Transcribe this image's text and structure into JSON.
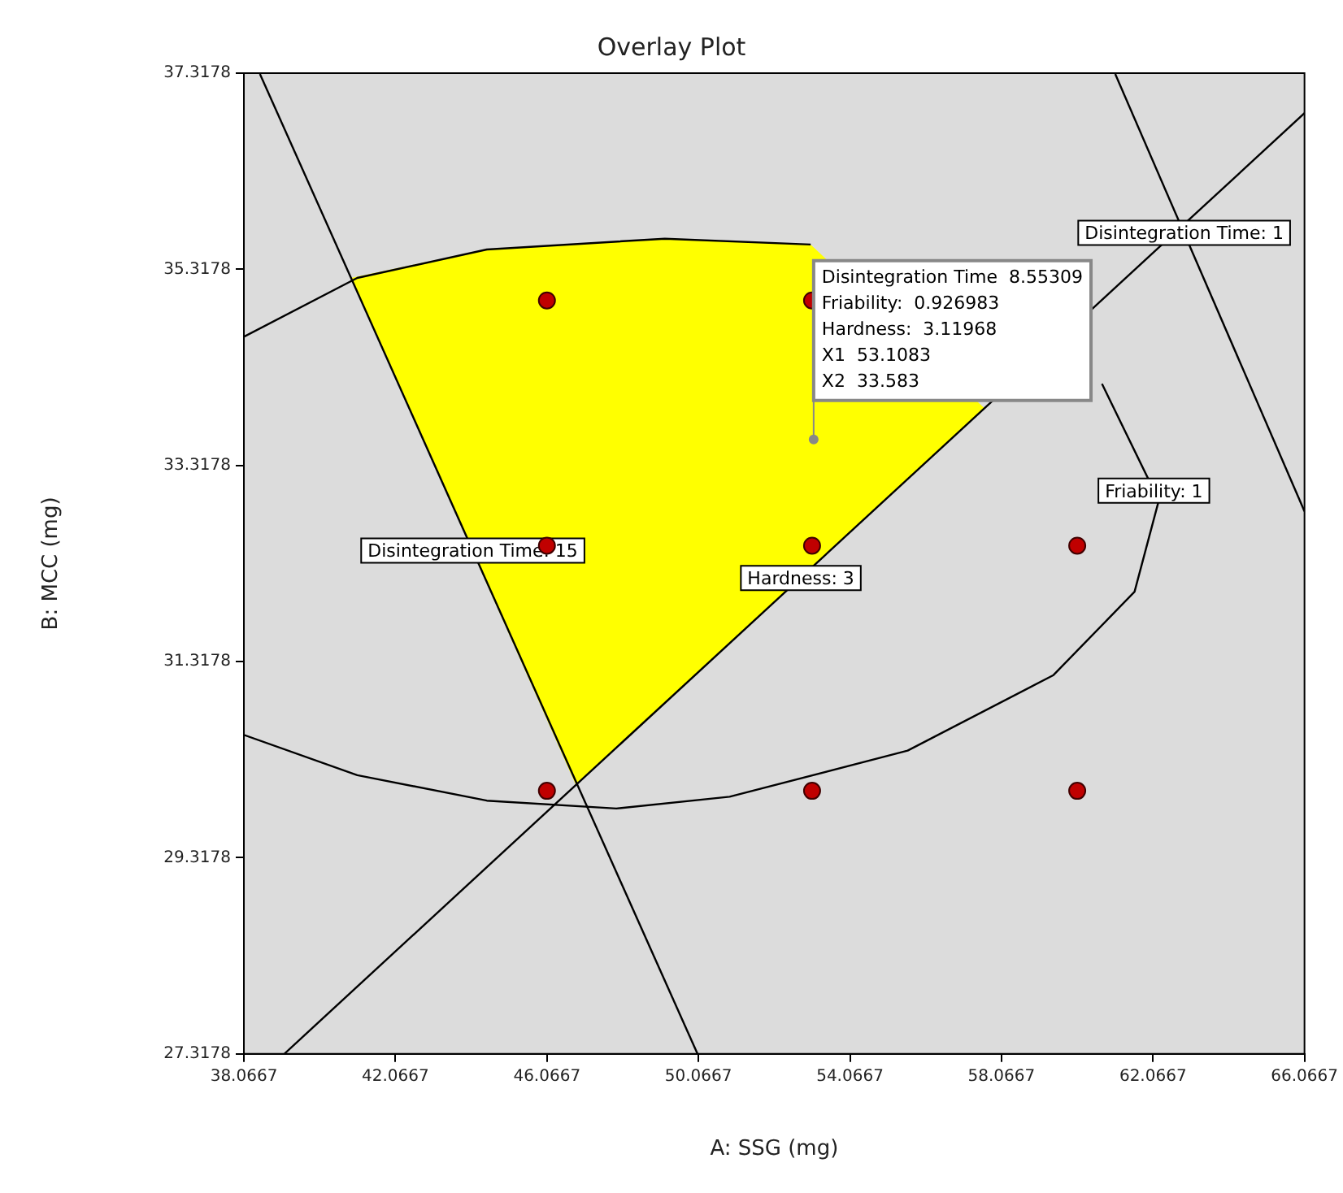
{
  "chart_data": {
    "type": "scatter",
    "title": "Overlay Plot",
    "xlabel": "A: SSG (mg)",
    "ylabel": "B: MCC (mg)",
    "xlim": [
      38.0667,
      66.0667
    ],
    "xticks": [
      38.0667,
      42.0667,
      46.0667,
      50.0667,
      54.0667,
      58.0667,
      62.0667,
      66.0667
    ],
    "ylim": [
      27.3178,
      37.3178
    ],
    "yticks": [
      27.3178,
      29.3178,
      31.3178,
      33.3178,
      35.3178,
      37.3178
    ],
    "grid": false,
    "legend": false,
    "series": [
      {
        "type": "area",
        "color": "#ffff00",
        "x": [
          40.9,
          44.48,
          49.18,
          53.03,
          57.62,
          46.83,
          40.9
        ],
        "values": [
          35.23,
          35.52,
          35.63,
          35.57,
          33.9,
          30.06,
          35.23
        ]
      },
      {
        "type": "line",
        "color": "#000000",
        "x": [
          38.49,
          50.04
        ],
        "values": [
          37.31,
          27.32
        ]
      },
      {
        "type": "line",
        "color": "#000000",
        "x": [
          39.14,
          66.0667
        ],
        "values": [
          27.32,
          36.91
        ]
      },
      {
        "type": "line",
        "color": "#000000",
        "x": [
          61.07,
          66.0667
        ],
        "values": [
          37.31,
          32.85
        ]
      },
      {
        "type": "line",
        "color": "#000000",
        "x": [
          38.0667,
          41.06,
          44.48,
          49.18,
          53.03,
          57.3,
          60.72,
          62.22,
          61.58,
          59.44,
          55.59,
          50.89,
          47.9,
          44.48,
          41.06,
          38.0667
        ],
        "values": [
          34.63,
          35.23,
          35.52,
          35.63,
          35.57,
          null,
          34.15,
          32.96,
          32.03,
          31.18,
          30.41,
          29.94,
          29.82,
          29.9,
          30.16,
          30.57
        ]
      },
      {
        "color": "#c00000",
        "marker": "circle",
        "x": [
          46.0667,
          53.0667,
          46.0667,
          53.0667,
          60.0667,
          46.0667,
          53.0667,
          60.0667
        ],
        "values": [
          35,
          35,
          32.5,
          32.5,
          32.5,
          30,
          30,
          30
        ]
      }
    ],
    "annotations": [
      {
        "text": "Disintegration Time: 1",
        "x": 62.89,
        "y": 35.69
      },
      {
        "text": "Friability: 1",
        "x": 62.09,
        "y": 33.06
      },
      {
        "text": "Disintegration Time: 15",
        "x": 44.11,
        "y": 32.45
      },
      {
        "text": "Hardness: 3",
        "x": 52.77,
        "y": 32.17
      },
      {
        "text": "Disintegration Time  8.55309\nFriability:  0.926983\nHardness:  3.11968\nX1  53.1083\nX2  33.583",
        "x": 53.1083,
        "y": 33.583
      }
    ]
  }
}
